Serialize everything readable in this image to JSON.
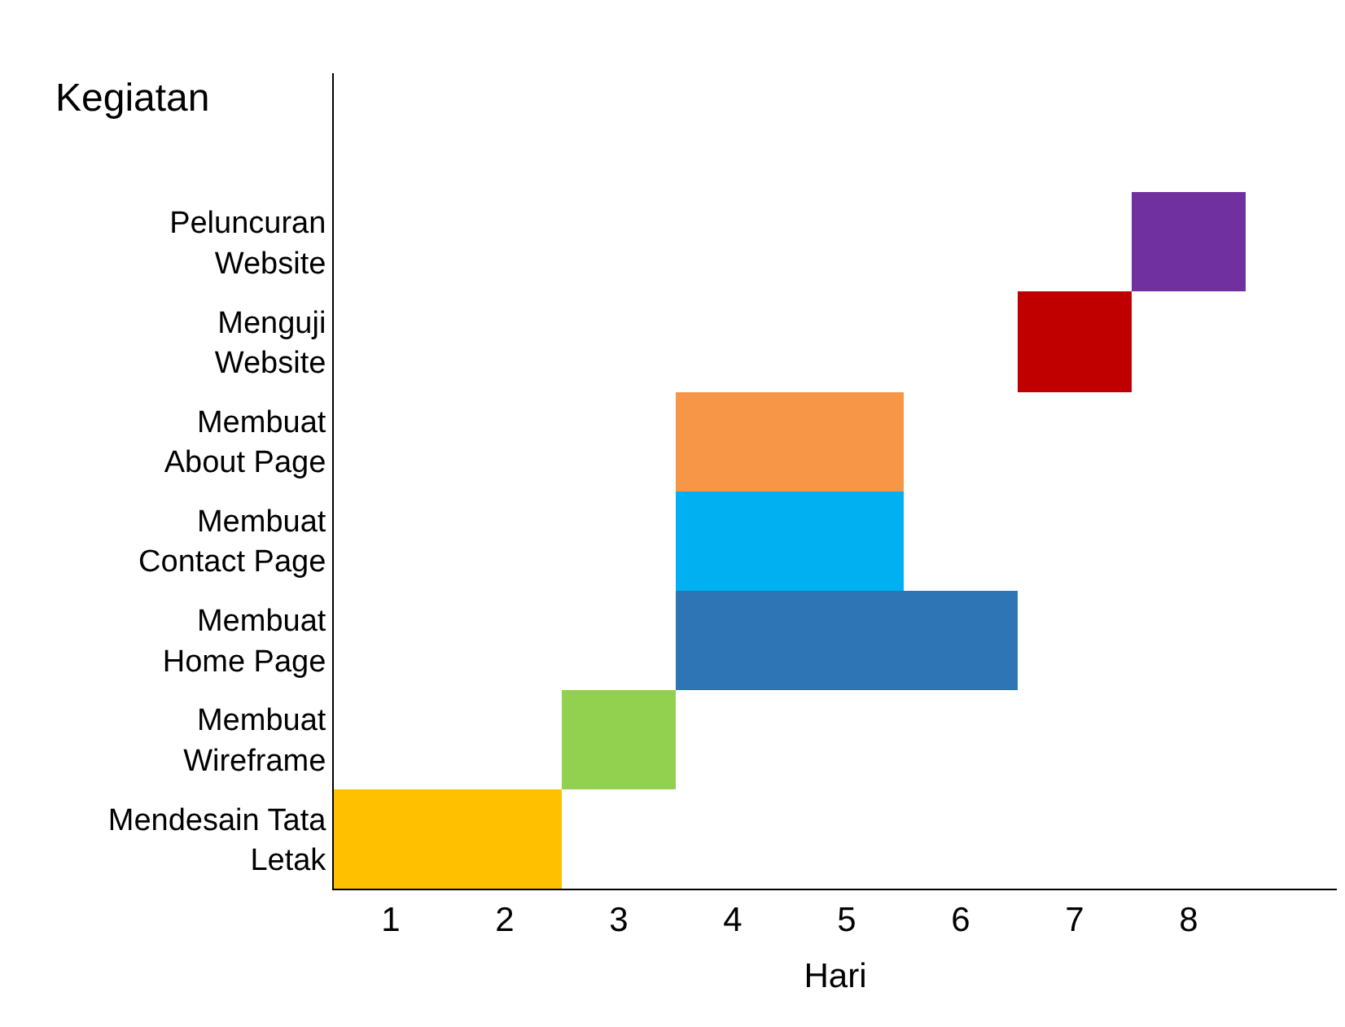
{
  "chart_data": {
    "type": "bar",
    "orientation": "horizontal",
    "ylabel": "Kegiatan",
    "xlabel": "Hari",
    "categories": [
      "Peluncuran\nWebsite",
      "Menguji\nWebsite",
      "Membuat\nAbout Page",
      "Membuat\nContact Page",
      "Membuat\nHome Page",
      "Membuat\nWireframe",
      "Mendesain Tata\nLetak"
    ],
    "values": [
      1,
      1,
      2,
      2,
      3,
      1,
      2
    ],
    "base": [
      7.5,
      6.5,
      3.5,
      3.5,
      3.5,
      2.5,
      0.5
    ],
    "colors": [
      "#7030a0",
      "#c00000",
      "#f79646",
      "#00b0f0",
      "#2e75b6",
      "#92d050",
      "#ffc000"
    ],
    "xlim": [
      0.5,
      9.3
    ],
    "xticks": [
      1,
      2,
      3,
      4,
      5,
      6,
      7,
      8
    ],
    "legend": false
  }
}
